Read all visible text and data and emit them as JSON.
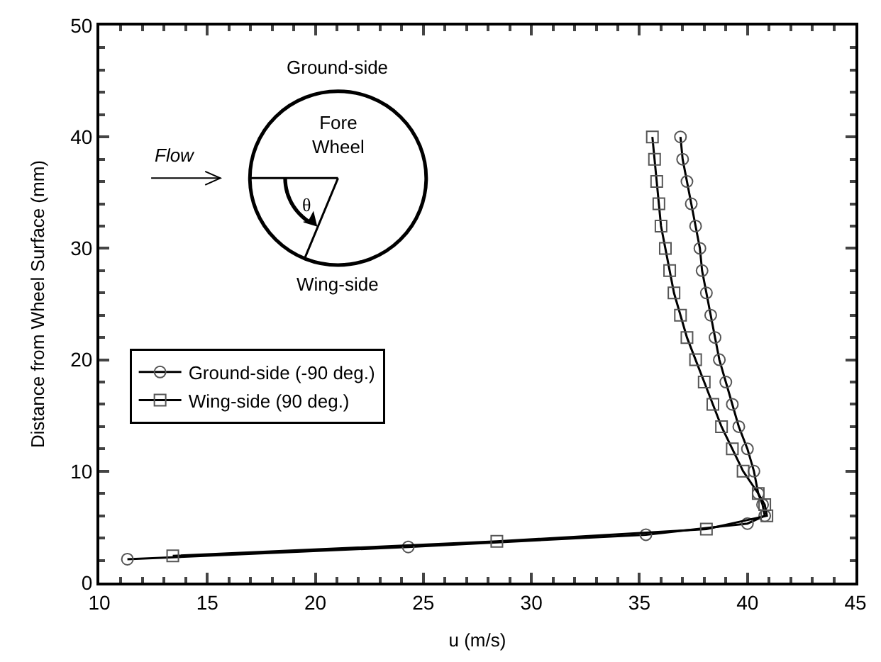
{
  "chart_data": {
    "type": "line",
    "xlabel": "u (m/s)",
    "ylabel": "Distance from Wheel Surface (mm)",
    "xlim": [
      10,
      45
    ],
    "xticks": [
      10,
      15,
      20,
      25,
      30,
      35,
      40,
      45
    ],
    "ylim": [
      0,
      50
    ],
    "yticks": [
      0,
      10,
      20,
      30,
      40,
      50
    ],
    "legend": "left",
    "line_style": "solid",
    "series": [
      {
        "name": "Ground-side (-90 deg.)",
        "color": "#000000",
        "marker": "circle",
        "x": [
          11.3,
          24.3,
          35.3,
          40.0,
          40.8,
          40.7,
          40.5,
          40.3,
          40.0,
          39.6,
          39.3,
          39.0,
          38.7,
          38.5,
          38.3,
          38.1,
          37.9,
          37.8,
          37.6,
          37.4,
          37.2,
          37.0,
          36.9
        ],
        "values": [
          2.1,
          3.2,
          4.3,
          5.3,
          6.0,
          7,
          8,
          10,
          12,
          14,
          16,
          18,
          20,
          22,
          24,
          26,
          28,
          30,
          32,
          34,
          36,
          38,
          40
        ]
      },
      {
        "name": "Wing-side (90 deg.)",
        "color": "#000000",
        "marker": "square",
        "x": [
          13.4,
          28.4,
          38.1,
          40.9,
          40.8,
          40.5,
          39.8,
          39.3,
          38.8,
          38.4,
          38.0,
          37.6,
          37.2,
          36.9,
          36.6,
          36.4,
          36.2,
          36.0,
          35.9,
          35.8,
          35.7,
          35.6
        ],
        "values": [
          2.4,
          3.7,
          4.8,
          6.0,
          7,
          8,
          10,
          12,
          14,
          16,
          18,
          20,
          22,
          24,
          26,
          28,
          30,
          32,
          34,
          36,
          38,
          40
        ]
      }
    ],
    "annotations": [
      "Ground-side",
      "Fore\nWheel",
      "Flow",
      "θ",
      "Wing-side"
    ]
  }
}
